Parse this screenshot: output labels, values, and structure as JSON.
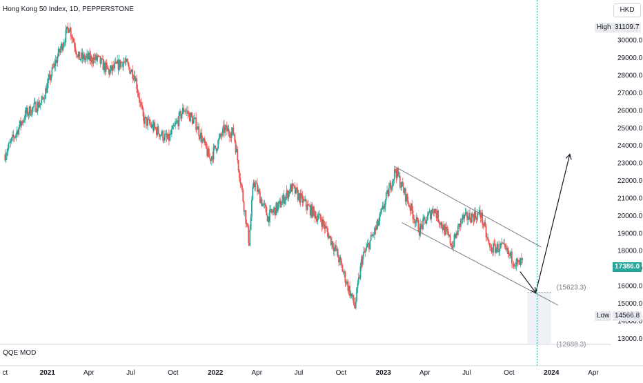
{
  "header": {
    "title": "Hong Kong 50 Index, 1D, PEPPERSTONE",
    "currency": "HKD"
  },
  "indicator": {
    "name": "QQE MOD"
  },
  "price_tags": {
    "high": {
      "label": "High",
      "value": "31109.7"
    },
    "current": {
      "value": "17386.0",
      "color": "#26a69a"
    },
    "low": {
      "label": "Low",
      "value": "14566.8"
    }
  },
  "annotations": {
    "target1": "(15623.3)",
    "target2": "(12688.3)"
  },
  "colors": {
    "up": "#26a69a",
    "down": "#ef5350",
    "lines": "#787b86",
    "cursor": "#26a69a"
  },
  "chart_data": {
    "type": "candlestick",
    "title": "Hong Kong 50 Index, 1D, PEPPERSTONE",
    "y_ticks": [
      "13000.0",
      "14000.0",
      "15000.0",
      "16000.0",
      "17000.0",
      "18000.0",
      "19000.0",
      "20000.0",
      "21000.0",
      "22000.0",
      "23000.0",
      "24000.0",
      "25000.0",
      "26000.0",
      "27000.0",
      "28000.0",
      "29000.0",
      "30000.0"
    ],
    "x_ticks": [
      {
        "label": "ct",
        "date": "2020-10-01"
      },
      {
        "label": "2021",
        "date": "2021-01-01",
        "bold": true
      },
      {
        "label": "Apr",
        "date": "2021-04-01"
      },
      {
        "label": "Jul",
        "date": "2021-07-01"
      },
      {
        "label": "Oct",
        "date": "2021-10-01"
      },
      {
        "label": "2022",
        "date": "2022-01-01",
        "bold": true
      },
      {
        "label": "Apr",
        "date": "2022-04-01"
      },
      {
        "label": "Jul",
        "date": "2022-07-01"
      },
      {
        "label": "Oct",
        "date": "2022-10-01"
      },
      {
        "label": "2023",
        "date": "2023-01-01",
        "bold": true
      },
      {
        "label": "Apr",
        "date": "2023-04-01"
      },
      {
        "label": "Jul",
        "date": "2023-07-01"
      },
      {
        "label": "Oct",
        "date": "2023-10-01"
      },
      {
        "label": "2024",
        "date": "2024-01-01",
        "bold": true
      },
      {
        "label": "Apr",
        "date": "2024-04-01"
      }
    ],
    "close_path": [
      [
        "2020-10-01",
        23500
      ],
      [
        "2020-11-15",
        25800
      ],
      [
        "2020-12-20",
        26500
      ],
      [
        "2021-01-15",
        28500
      ],
      [
        "2021-02-17",
        30800
      ],
      [
        "2021-03-10",
        29000
      ],
      [
        "2021-04-20",
        28900
      ],
      [
        "2021-05-15",
        28200
      ],
      [
        "2021-06-15",
        28800
      ],
      [
        "2021-07-10",
        28000
      ],
      [
        "2021-07-28",
        25500
      ],
      [
        "2021-08-20",
        25000
      ],
      [
        "2021-09-20",
        24300
      ],
      [
        "2021-10-25",
        26100
      ],
      [
        "2021-11-20",
        25200
      ],
      [
        "2021-12-20",
        23200
      ],
      [
        "2022-01-20",
        24900
      ],
      [
        "2022-02-10",
        24700
      ],
      [
        "2022-03-15",
        18500
      ],
      [
        "2022-03-25",
        22000
      ],
      [
        "2022-04-25",
        19900
      ],
      [
        "2022-05-20",
        20600
      ],
      [
        "2022-06-15",
        21600
      ],
      [
        "2022-07-20",
        20500
      ],
      [
        "2022-08-20",
        19700
      ],
      [
        "2022-09-20",
        18000
      ],
      [
        "2022-10-31",
        14800
      ],
      [
        "2022-11-15",
        17500
      ],
      [
        "2022-12-20",
        19500
      ],
      [
        "2023-01-27",
        22600
      ],
      [
        "2023-02-20",
        21000
      ],
      [
        "2023-03-20",
        19200
      ],
      [
        "2023-04-20",
        20400
      ],
      [
        "2023-05-31",
        18300
      ],
      [
        "2023-06-20",
        19800
      ],
      [
        "2023-07-31",
        20100
      ],
      [
        "2023-08-20",
        18100
      ],
      [
        "2023-09-15",
        18200
      ],
      [
        "2023-10-20",
        17200
      ],
      [
        "2023-11-01",
        17386
      ]
    ],
    "channel_upper": [
      [
        "2023-01-25",
        22800
      ],
      [
        "2023-12-10",
        18200
      ]
    ],
    "channel_lower": [
      [
        "2023-02-10",
        19600
      ],
      [
        "2024-01-15",
        14900
      ]
    ],
    "projection": [
      [
        "2023-10-25",
        16800
      ],
      [
        "2023-11-28",
        15600
      ],
      [
        "2024-02-10",
        23500
      ]
    ],
    "shaded_zone": {
      "x": [
        "2023-11-10",
        "2023-12-31"
      ],
      "y": [
        12700,
        15623.3
      ]
    },
    "cursor_date": "2023-12-01",
    "ylim": [
      12700,
      31500
    ],
    "xlim": [
      "2020-09-20",
      "2024-05-10"
    ]
  }
}
